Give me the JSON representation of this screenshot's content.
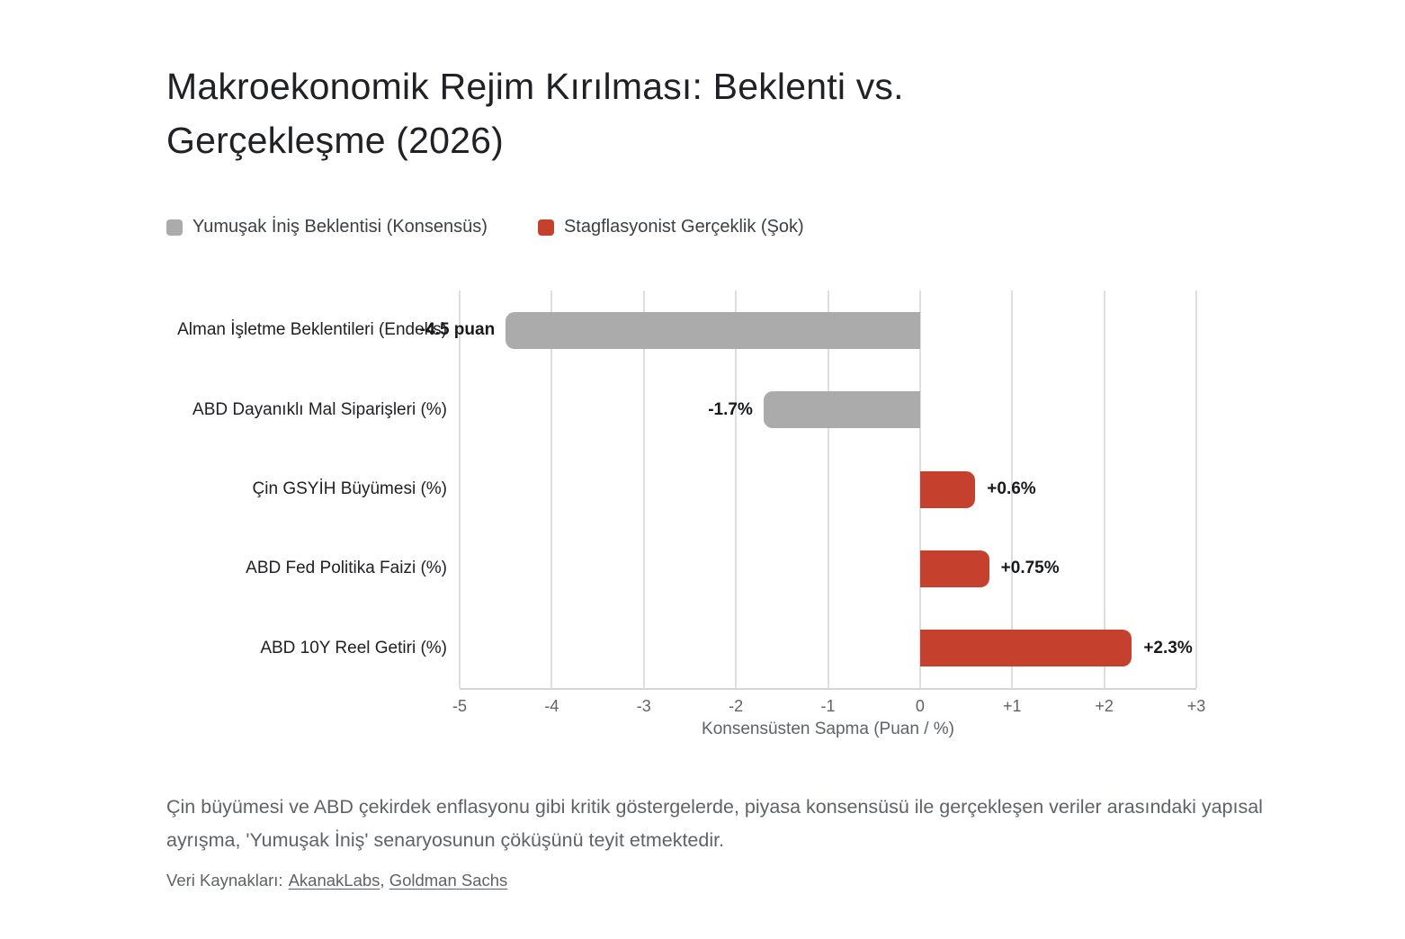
{
  "title": "Makroekonomik Rejim Kırılması: Beklenti vs. Gerçekleşme (2026)",
  "legend": [
    {
      "label": "Yumuşak İniş Beklentisi (Konsensüs)",
      "color": "#ABABAB"
    },
    {
      "label": "Stagflasyonist Gerçeklik (Şok)",
      "color": "#C6402E"
    }
  ],
  "chart_data": {
    "type": "bar",
    "orientation": "horizontal",
    "title": "Makroekonomik Rejim Kırılması: Beklenti vs. Gerçekleşme (2026)",
    "categories": [
      "Alman İşletme Beklentileri (Endeks)",
      "ABD Dayanıklı Mal Siparişleri (%)",
      "Çin GSYİH Büyümesi (%)",
      "ABD Fed Politika Faizi (%)",
      "ABD 10Y Reel Getiri (%)"
    ],
    "values": [
      -4.5,
      -1.7,
      0.6,
      0.75,
      2.3
    ],
    "value_labels": [
      "-4.5 puan",
      "-1.7%",
      "+0.6%",
      "+0.75%",
      "+2.3%"
    ],
    "bar_series_index": [
      0,
      0,
      1,
      1,
      1
    ],
    "xlabel": "Konsensüsten Sapma (Puan / %)",
    "ylabel": "",
    "xlim": [
      -5,
      3
    ],
    "xticks": [
      "-5",
      "-4",
      "-3",
      "-2",
      "-1",
      "0",
      "+1",
      "+2",
      "+3"
    ],
    "grid": true,
    "legend_position": "top-left"
  },
  "caption": "Çin büyümesi ve ABD çekirdek enflasyonu gibi kritik göstergelerde, piyasa konsensüsü ile gerçekleşen veriler arasındaki yapısal ayrışma, 'Yumuşak İniş' senaryosunun çöküşünü teyit etmektedir.",
  "sources": {
    "prefix": "Veri Kaynakları:",
    "links": [
      "AkanakLabs",
      "Goldman Sachs"
    ],
    "separator": ", "
  }
}
